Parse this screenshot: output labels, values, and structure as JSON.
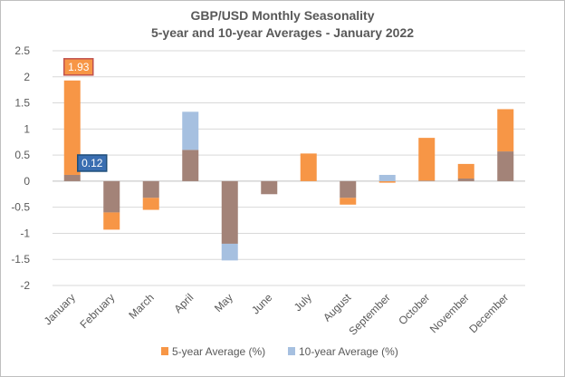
{
  "chart_data": {
    "type": "bar",
    "title": "GBP/USD Monthly Seasonality",
    "subtitle": "5-year and 10-year Averages - January 2022",
    "categories": [
      "January",
      "February",
      "March",
      "April",
      "May",
      "June",
      "July",
      "August",
      "September",
      "October",
      "November",
      "December"
    ],
    "series": [
      {
        "name": "5-year Average (%)",
        "color": "#f79646",
        "values": [
          1.93,
          -0.93,
          -0.55,
          0.6,
          -1.2,
          -0.25,
          0.53,
          -0.45,
          -0.03,
          0.83,
          0.33,
          1.38
        ]
      },
      {
        "name": "10-year Average (%)",
        "color": "#a6c0e0",
        "values": [
          0.12,
          -0.6,
          -0.32,
          1.33,
          -1.52,
          -0.25,
          0.0,
          -0.32,
          0.12,
          0.01,
          0.05,
          0.57
        ]
      }
    ],
    "overlap_color": "#a38378",
    "ylim": [
      -2,
      2.5
    ],
    "yticks": [
      "2.5",
      "2",
      "1.5",
      "1",
      "0.5",
      "0",
      "-0.5",
      "-1",
      "-1.5",
      "-2"
    ],
    "grid": true,
    "legend": "bottom",
    "callouts": [
      {
        "label": "1.93",
        "category": "January",
        "series": "5-year Average (%)",
        "fill": "#f79646",
        "border": "#c0504d"
      },
      {
        "label": "0.12",
        "category": "January",
        "series": "10-year Average (%)",
        "fill": "#3a6eb1",
        "border": "#1f4e79"
      }
    ]
  }
}
